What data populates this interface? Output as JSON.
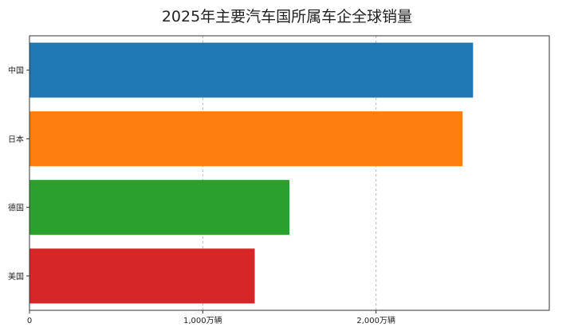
{
  "chart_data": {
    "type": "bar",
    "orientation": "horizontal",
    "title": "2025年主要汽车国所属车企全球销量",
    "categories": [
      "中国",
      "日本",
      "德国",
      "美国"
    ],
    "values": [
      2560,
      2500,
      1500,
      1300
    ],
    "colors": [
      "#1f77b4",
      "#ff7f0e",
      "#2ca02c",
      "#d62728"
    ],
    "xlim": [
      0,
      3000
    ],
    "x_ticks": [
      {
        "value": 0,
        "label": "0"
      },
      {
        "value": 1000,
        "label": "1,000万辆"
      },
      {
        "value": 2000,
        "label": "2,000万辆"
      }
    ],
    "xlabel": "",
    "ylabel": "",
    "grid": "x-dashed"
  }
}
